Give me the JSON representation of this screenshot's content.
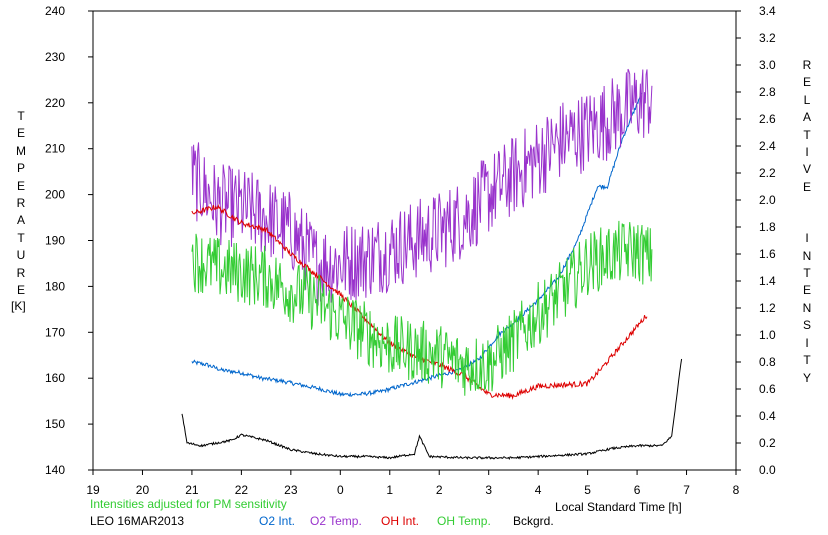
{
  "chart_data": {
    "type": "line",
    "xlabel": "Local Standard Time [h]",
    "ylabel_left": "TEMPERATURE",
    "ylabel_left_unit": "[K]",
    "ylabel_right": "RELATIVE INTENSITY",
    "note": "Intensities adjusted for PM sensitivity",
    "station_date": "LEO 16MAR2013",
    "x_tick_labels": [
      "19",
      "20",
      "21",
      "22",
      "23",
      "0",
      "1",
      "2",
      "3",
      "4",
      "5",
      "6",
      "7",
      "8"
    ],
    "xlim": [
      19,
      32
    ],
    "ylim_left": [
      140,
      240
    ],
    "ylim_right": [
      0,
      3.4
    ],
    "left_ticks": [
      140,
      150,
      160,
      170,
      180,
      190,
      200,
      210,
      220,
      230,
      240
    ],
    "right_ticks": [
      "0.0",
      "0.2",
      "0.4",
      "0.6",
      "0.8",
      "1.0",
      "1.2",
      "1.4",
      "1.6",
      "1.8",
      "2.0",
      "2.2",
      "2.4",
      "2.6",
      "2.8",
      "3.0",
      "3.2",
      "3.4"
    ],
    "legend": [
      "O2 Int.",
      "O2 Temp.",
      "OH Int.",
      "OH Temp.",
      "Bckgrd."
    ],
    "series": [
      {
        "name": "O2 Int.",
        "axis": "right",
        "color": "#0066cc",
        "x": [
          21.0,
          21.3,
          21.6,
          22.0,
          22.4,
          22.8,
          23.2,
          23.6,
          24.0,
          24.4,
          24.8,
          25.2,
          25.6,
          26.0,
          26.4,
          26.8,
          27.2,
          27.6,
          28.0,
          28.4,
          28.8,
          29.0,
          29.2,
          29.4,
          29.7,
          30.1
        ],
        "y": [
          0.8,
          0.78,
          0.74,
          0.72,
          0.68,
          0.66,
          0.63,
          0.6,
          0.56,
          0.56,
          0.58,
          0.62,
          0.66,
          0.7,
          0.74,
          0.82,
          1.0,
          1.12,
          1.26,
          1.42,
          1.7,
          1.9,
          2.1,
          2.1,
          2.45,
          2.8
        ],
        "noise": 0.015
      },
      {
        "name": "O2 Temp.",
        "axis": "left",
        "color": "#9933cc",
        "x": [
          21.0,
          21.5,
          22.0,
          22.5,
          23.0,
          23.5,
          24.0,
          24.5,
          25.0,
          25.5,
          26.0,
          26.5,
          27.0,
          27.5,
          28.0,
          28.5,
          29.0,
          29.5,
          30.0,
          30.3
        ],
        "y": [
          204,
          198,
          197,
          195,
          192,
          185,
          185,
          186,
          188,
          190,
          192,
          195,
          200,
          204,
          208,
          212,
          214,
          217,
          220,
          221
        ],
        "noise": 9
      },
      {
        "name": "OH Int.",
        "axis": "right",
        "color": "#dd0000",
        "x": [
          21.0,
          21.5,
          22.0,
          22.5,
          23.0,
          23.5,
          24.0,
          24.5,
          25.0,
          25.5,
          26.0,
          26.5,
          27.0,
          27.5,
          28.0,
          28.5,
          29.0,
          29.3,
          30.2
        ],
        "y": [
          1.9,
          1.95,
          1.83,
          1.78,
          1.6,
          1.45,
          1.3,
          1.12,
          0.94,
          0.84,
          0.78,
          0.7,
          0.56,
          0.55,
          0.62,
          0.63,
          0.64,
          0.76,
          1.15
        ],
        "noise": 0.02
      },
      {
        "name": "OH Temp.",
        "axis": "left",
        "color": "#33cc33",
        "x": [
          21.0,
          21.5,
          22.0,
          22.5,
          23.0,
          23.5,
          24.0,
          24.5,
          25.0,
          25.5,
          26.0,
          26.5,
          27.0,
          27.5,
          28.0,
          28.5,
          29.0,
          29.5,
          30.0,
          30.3
        ],
        "y": [
          186,
          184,
          183,
          182,
          179,
          177,
          173,
          170,
          167,
          166,
          165,
          163,
          163,
          168,
          174,
          179,
          185,
          187,
          188,
          186
        ],
        "noise": 7
      },
      {
        "name": "Bckgrd.",
        "axis": "right",
        "color": "#000000",
        "x": [
          20.8,
          20.9,
          21.2,
          21.8,
          22.0,
          22.5,
          23.0,
          23.5,
          24.0,
          24.5,
          25.0,
          25.5,
          25.6,
          25.8,
          26.5,
          27.0,
          27.5,
          28.0,
          28.5,
          29.0,
          29.5,
          30.0,
          30.5,
          30.7,
          30.9
        ],
        "y": [
          0.42,
          0.2,
          0.18,
          0.22,
          0.26,
          0.22,
          0.15,
          0.12,
          0.1,
          0.1,
          0.09,
          0.12,
          0.25,
          0.1,
          0.09,
          0.09,
          0.09,
          0.1,
          0.11,
          0.12,
          0.16,
          0.18,
          0.18,
          0.25,
          0.83
        ],
        "noise": 0.008
      }
    ]
  }
}
